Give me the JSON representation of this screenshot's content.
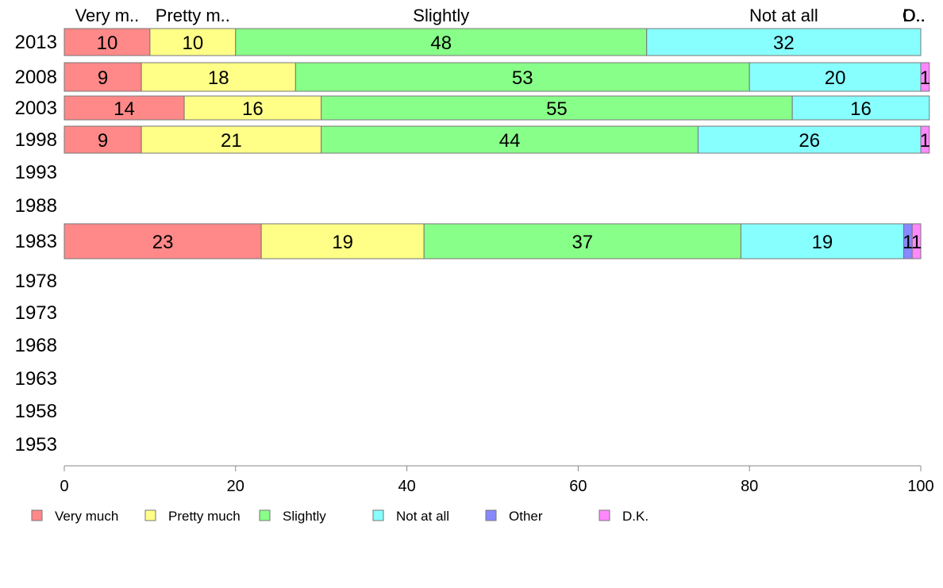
{
  "chart_data": {
    "type": "bar",
    "orientation": "horizontal",
    "stacked": true,
    "categories": [
      "2013",
      "2008",
      "2003",
      "1998",
      "1993",
      "1988",
      "1983",
      "1978",
      "1973",
      "1968",
      "1963",
      "1958",
      "1953"
    ],
    "series": [
      {
        "name": "Very much",
        "short_label": "Very m..",
        "color": "#ff8888",
        "values": [
          10,
          9,
          14,
          9,
          null,
          null,
          23,
          null,
          null,
          null,
          null,
          null,
          null
        ]
      },
      {
        "name": "Pretty much",
        "short_label": "Pretty m..",
        "color": "#ffff88",
        "values": [
          10,
          18,
          16,
          21,
          null,
          null,
          19,
          null,
          null,
          null,
          null,
          null,
          null
        ]
      },
      {
        "name": "Slightly",
        "short_label": "Slightly",
        "color": "#88ff88",
        "values": [
          48,
          53,
          55,
          44,
          null,
          null,
          37,
          null,
          null,
          null,
          null,
          null,
          null
        ]
      },
      {
        "name": "Not at all",
        "short_label": "Not at all",
        "color": "#88ffff",
        "values": [
          32,
          20,
          16,
          26,
          null,
          null,
          19,
          null,
          null,
          null,
          null,
          null,
          null
        ]
      },
      {
        "name": "Other",
        "short_label": "O..",
        "color": "#8888ff",
        "values": [
          0,
          0,
          0,
          0,
          null,
          null,
          1,
          null,
          null,
          null,
          null,
          null,
          null
        ]
      },
      {
        "name": "D.K.",
        "short_label": "D..",
        "color": "#ff88ff",
        "values": [
          0,
          1,
          0,
          1,
          null,
          null,
          1,
          null,
          null,
          null,
          null,
          null,
          null
        ]
      }
    ],
    "xlim": [
      0,
      100
    ],
    "xticks": [
      "0",
      "20",
      "40",
      "60",
      "80",
      "100"
    ],
    "grid": false,
    "legend": "bottom"
  }
}
